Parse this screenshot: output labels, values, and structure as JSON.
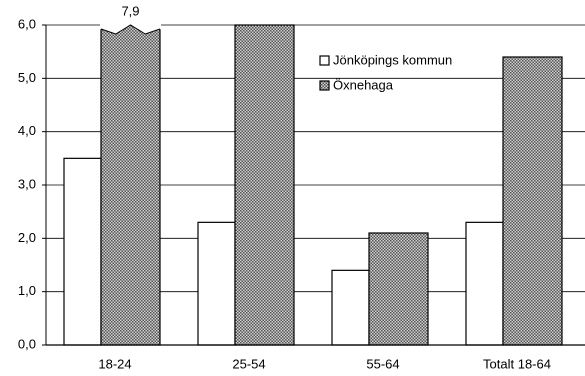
{
  "chart_data": {
    "type": "bar",
    "categories": [
      "18-24",
      "25-54",
      "55-64",
      "Totalt 18-64"
    ],
    "series": [
      {
        "name": "Jönköpings kommun",
        "color": "#ffffff",
        "values": [
          3.5,
          2.3,
          1.4,
          2.3
        ]
      },
      {
        "name": "Öxnehaga",
        "color": "#8a8a8a",
        "values": [
          7.9,
          6.0,
          2.1,
          5.4
        ],
        "value_labels": [
          "7,9",
          null,
          null,
          null
        ]
      }
    ],
    "ylim": [
      0,
      6
    ],
    "yticks": [
      {
        "value": 0,
        "label": "0,0"
      },
      {
        "value": 1,
        "label": "1,0"
      },
      {
        "value": 2,
        "label": "2,0"
      },
      {
        "value": 3,
        "label": "3,0"
      },
      {
        "value": 4,
        "label": "4,0"
      },
      {
        "value": 5,
        "label": "5,0"
      },
      {
        "value": 6,
        "label": "6,0"
      }
    ],
    "grid": true,
    "legend": "upper right"
  }
}
